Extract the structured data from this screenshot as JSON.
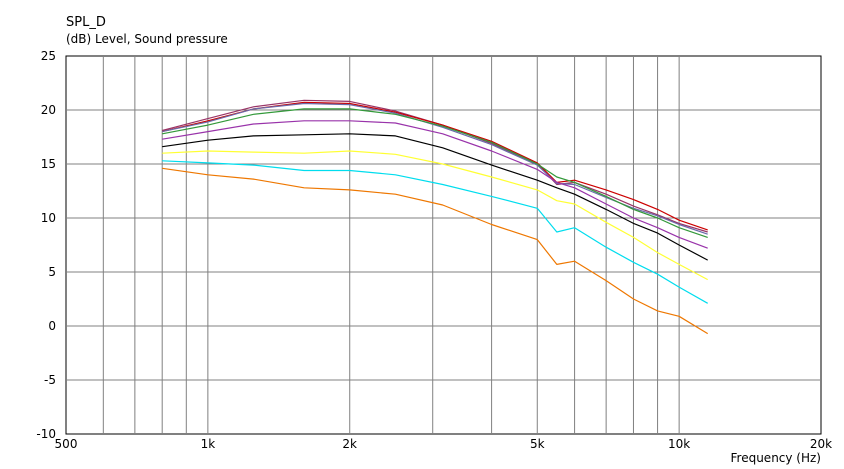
{
  "chart_data": {
    "type": "line",
    "title": "SPL_D",
    "subtitle": "(dB)  Level, Sound pressure",
    "xlabel": "Frequency  (Hz)",
    "ylabel": "",
    "xscale": "log",
    "xlim": [
      500,
      20000
    ],
    "ylim": [
      -10,
      25
    ],
    "grid": true,
    "legend": "none",
    "x_ticks": [
      {
        "value": 500,
        "label": "500"
      },
      {
        "value": 1000,
        "label": "1k"
      },
      {
        "value": 2000,
        "label": "2k"
      },
      {
        "value": 5000,
        "label": "5k"
      },
      {
        "value": 10000,
        "label": "10k"
      },
      {
        "value": 20000,
        "label": "20k"
      }
    ],
    "y_ticks": [
      {
        "value": 25,
        "label": "25"
      },
      {
        "value": 20,
        "label": "20"
      },
      {
        "value": 15,
        "label": "15"
      },
      {
        "value": 10,
        "label": "10"
      },
      {
        "value": 5,
        "label": "5"
      },
      {
        "value": 0,
        "label": "0"
      },
      {
        "value": -5,
        "label": "-5"
      },
      {
        "value": -10,
        "label": "-10"
      }
    ],
    "x": [
      800,
      1000,
      1250,
      1600,
      2000,
      2500,
      3150,
      4000,
      5000,
      5500,
      6000,
      7000,
      8000,
      9000,
      10000,
      11500
    ],
    "series": [
      {
        "color": "#993366",
        "values": [
          18.1,
          19.2,
          20.3,
          20.9,
          20.8,
          19.9,
          18.6,
          16.9,
          15.0,
          13.1,
          13.3,
          12.2,
          11.1,
          10.3,
          9.5,
          8.7
        ]
      },
      {
        "color": "#cc0000",
        "values": [
          18.0,
          19.0,
          20.1,
          20.7,
          20.6,
          19.8,
          18.6,
          17.1,
          15.1,
          13.3,
          13.5,
          12.6,
          11.7,
          10.8,
          9.8,
          8.9
        ]
      },
      {
        "color": "#6a6aaa",
        "values": [
          18.0,
          18.9,
          20.1,
          20.6,
          20.5,
          19.7,
          18.4,
          16.8,
          14.9,
          13.2,
          13.1,
          11.9,
          10.9,
          10.2,
          9.4,
          8.5
        ]
      },
      {
        "color": "#33993a",
        "values": [
          17.8,
          18.6,
          19.6,
          20.1,
          20.1,
          19.6,
          18.5,
          17.0,
          15.0,
          13.8,
          13.3,
          12.0,
          10.8,
          10.0,
          9.1,
          8.2
        ]
      },
      {
        "color": "#9933aa",
        "values": [
          17.3,
          18.0,
          18.7,
          19.0,
          19.0,
          18.8,
          17.8,
          16.2,
          14.5,
          13.3,
          12.8,
          11.3,
          10.0,
          9.1,
          8.2,
          7.2
        ]
      },
      {
        "color": "#000000",
        "values": [
          16.6,
          17.2,
          17.6,
          17.7,
          17.8,
          17.6,
          16.5,
          14.9,
          13.5,
          12.8,
          12.2,
          10.8,
          9.5,
          8.6,
          7.5,
          6.1
        ]
      },
      {
        "color": "#ffff33",
        "values": [
          16.0,
          16.2,
          16.1,
          16.0,
          16.2,
          15.9,
          15.0,
          13.8,
          12.6,
          11.6,
          11.3,
          9.6,
          8.2,
          6.8,
          5.7,
          4.3
        ]
      },
      {
        "color": "#00ddee",
        "values": [
          15.3,
          15.1,
          14.9,
          14.4,
          14.4,
          14.0,
          13.1,
          12.0,
          10.9,
          8.7,
          9.1,
          7.3,
          5.9,
          4.8,
          3.6,
          2.1
        ]
      },
      {
        "color": "#ee7700",
        "values": [
          14.6,
          14.0,
          13.6,
          12.8,
          12.6,
          12.2,
          11.2,
          9.4,
          8.0,
          5.7,
          6.0,
          4.2,
          2.5,
          1.4,
          0.9,
          -0.7
        ]
      }
    ]
  }
}
